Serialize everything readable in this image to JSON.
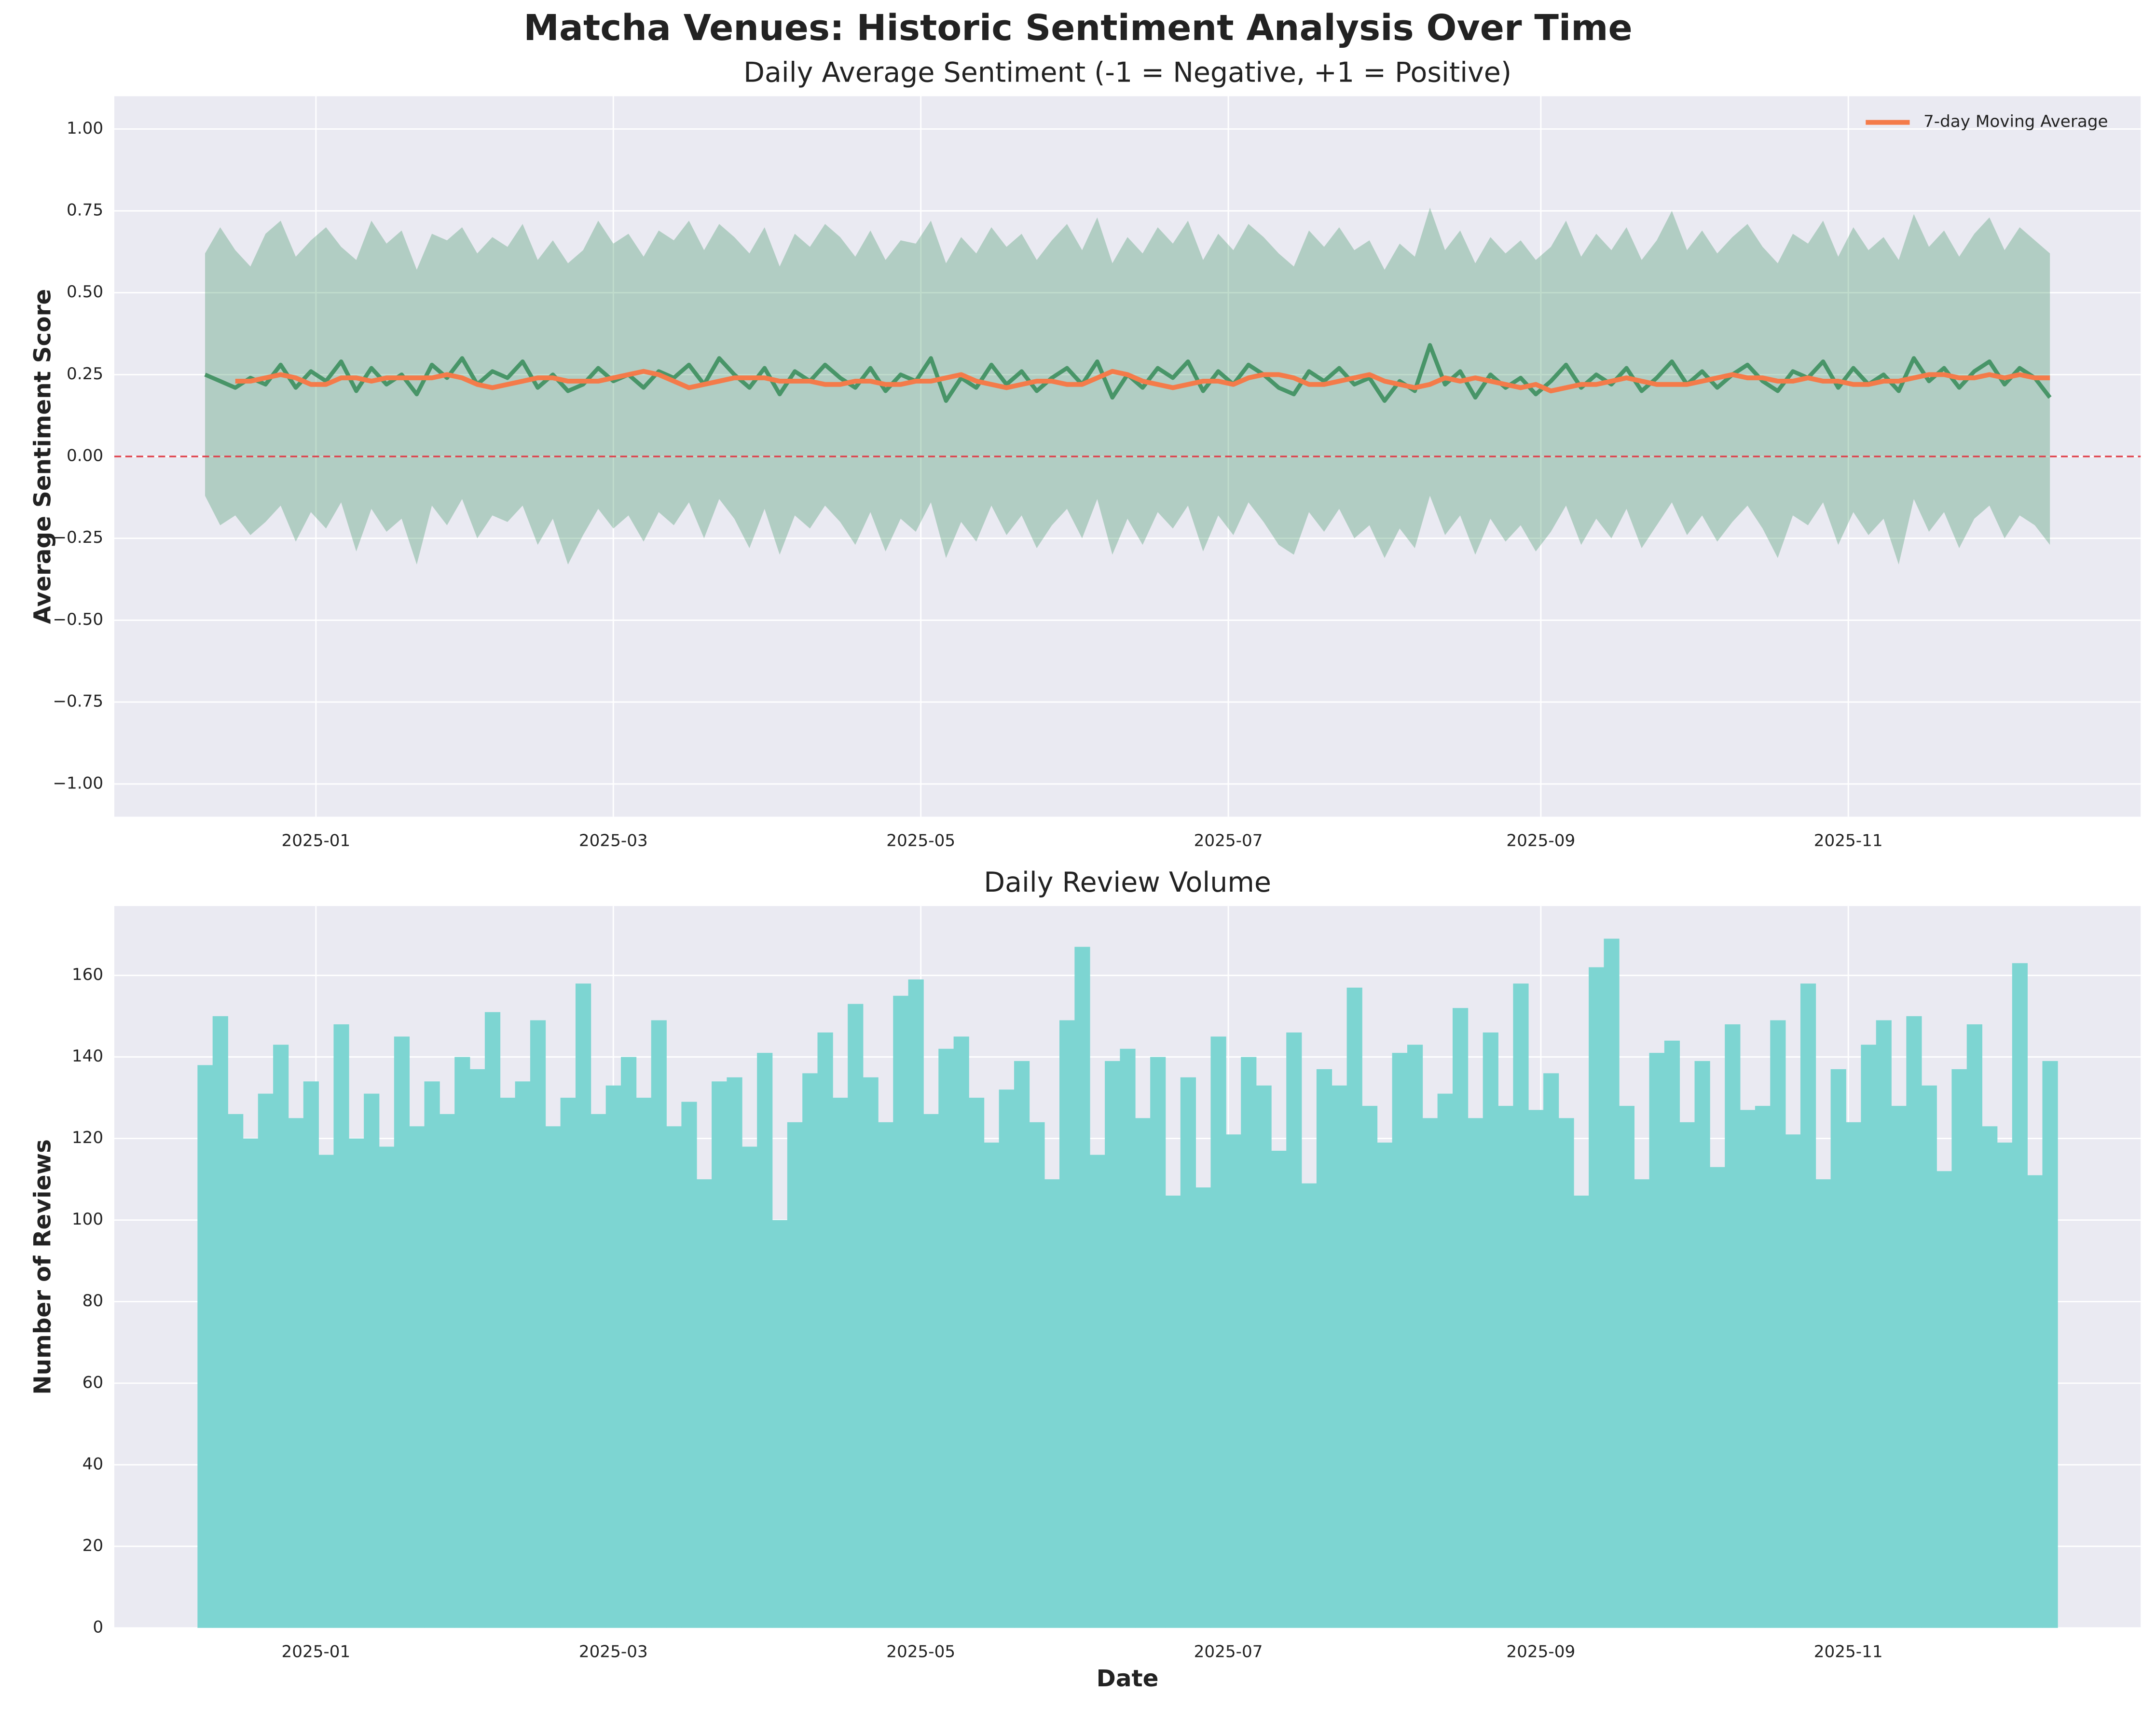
{
  "title": "Matcha Venues: Historic Sentiment Analysis Over Time",
  "chart_data": [
    {
      "type": "line",
      "title": "Daily Average Sentiment (-1 = Negative, +1 = Positive)",
      "ylabel": "Average Sentiment Score",
      "x": [
        "2024-12-10",
        "2024-12-13",
        "2024-12-16",
        "2024-12-19",
        "2024-12-22",
        "2024-12-25",
        "2024-12-28",
        "2024-12-31",
        "2025-01-03",
        "2025-01-06",
        "2025-01-09",
        "2025-01-12",
        "2025-01-15",
        "2025-01-18",
        "2025-01-21",
        "2025-01-24",
        "2025-01-27",
        "2025-01-30",
        "2025-02-02",
        "2025-02-05",
        "2025-02-08",
        "2025-02-11",
        "2025-02-14",
        "2025-02-17",
        "2025-02-20",
        "2025-02-23",
        "2025-02-26",
        "2025-03-01",
        "2025-03-04",
        "2025-03-07",
        "2025-03-10",
        "2025-03-13",
        "2025-03-16",
        "2025-03-19",
        "2025-03-22",
        "2025-03-25",
        "2025-03-28",
        "2025-03-31",
        "2025-04-03",
        "2025-04-06",
        "2025-04-09",
        "2025-04-12",
        "2025-04-15",
        "2025-04-18",
        "2025-04-21",
        "2025-04-24",
        "2025-04-27",
        "2025-04-30",
        "2025-05-03",
        "2025-05-06",
        "2025-05-09",
        "2025-05-12",
        "2025-05-15",
        "2025-05-18",
        "2025-05-21",
        "2025-05-24",
        "2025-05-27",
        "2025-05-30",
        "2025-06-02",
        "2025-06-05",
        "2025-06-08",
        "2025-06-11",
        "2025-06-14",
        "2025-06-17",
        "2025-06-20",
        "2025-06-23",
        "2025-06-26",
        "2025-06-29",
        "2025-07-02",
        "2025-07-05",
        "2025-07-08",
        "2025-07-11",
        "2025-07-14",
        "2025-07-17",
        "2025-07-20",
        "2025-07-23",
        "2025-07-26",
        "2025-07-29",
        "2025-08-01",
        "2025-08-04",
        "2025-08-07",
        "2025-08-10",
        "2025-08-13",
        "2025-08-16",
        "2025-08-19",
        "2025-08-22",
        "2025-08-25",
        "2025-08-28",
        "2025-08-31",
        "2025-09-03",
        "2025-09-06",
        "2025-09-09",
        "2025-09-12",
        "2025-09-15",
        "2025-09-18",
        "2025-09-21",
        "2025-09-24",
        "2025-09-27",
        "2025-09-30",
        "2025-10-03",
        "2025-10-06",
        "2025-10-09",
        "2025-10-12",
        "2025-10-15",
        "2025-10-18",
        "2025-10-21",
        "2025-10-24",
        "2025-10-27",
        "2025-10-30",
        "2025-11-02",
        "2025-11-05",
        "2025-11-08",
        "2025-11-11",
        "2025-11-14",
        "2025-11-17",
        "2025-11-20",
        "2025-11-23",
        "2025-11-26",
        "2025-11-29",
        "2025-12-02",
        "2025-12-05",
        "2025-12-08",
        "2025-12-11"
      ],
      "band": {
        "color": "#2e8b57",
        "upper": [
          0.62,
          0.7,
          0.63,
          0.58,
          0.68,
          0.72,
          0.61,
          0.66,
          0.7,
          0.64,
          0.6,
          0.72,
          0.65,
          0.69,
          0.57,
          0.68,
          0.66,
          0.7,
          0.62,
          0.67,
          0.64,
          0.71,
          0.6,
          0.66,
          0.59,
          0.63,
          0.72,
          0.65,
          0.68,
          0.61,
          0.69,
          0.66,
          0.72,
          0.63,
          0.71,
          0.67,
          0.62,
          0.7,
          0.58,
          0.68,
          0.64,
          0.71,
          0.67,
          0.61,
          0.69,
          0.6,
          0.66,
          0.65,
          0.72,
          0.59,
          0.67,
          0.62,
          0.7,
          0.64,
          0.68,
          0.6,
          0.66,
          0.71,
          0.63,
          0.73,
          0.59,
          0.67,
          0.62,
          0.7,
          0.65,
          0.72,
          0.6,
          0.68,
          0.63,
          0.71,
          0.67,
          0.62,
          0.58,
          0.69,
          0.64,
          0.7,
          0.63,
          0.66,
          0.57,
          0.65,
          0.61,
          0.76,
          0.63,
          0.69,
          0.59,
          0.67,
          0.62,
          0.66,
          0.6,
          0.64,
          0.72,
          0.61,
          0.68,
          0.63,
          0.7,
          0.6,
          0.66,
          0.75,
          0.63,
          0.69,
          0.62,
          0.67,
          0.71,
          0.64,
          0.59,
          0.68,
          0.65,
          0.72,
          0.61,
          0.7,
          0.63,
          0.67,
          0.6,
          0.74,
          0.64,
          0.69,
          0.61,
          0.68,
          0.73,
          0.63,
          0.7,
          0.66,
          0.62
        ],
        "lower": [
          -0.12,
          -0.21,
          -0.18,
          -0.24,
          -0.2,
          -0.15,
          -0.26,
          -0.17,
          -0.22,
          -0.14,
          -0.29,
          -0.16,
          -0.23,
          -0.19,
          -0.33,
          -0.15,
          -0.21,
          -0.13,
          -0.25,
          -0.18,
          -0.2,
          -0.15,
          -0.27,
          -0.19,
          -0.33,
          -0.24,
          -0.16,
          -0.22,
          -0.18,
          -0.26,
          -0.17,
          -0.21,
          -0.14,
          -0.25,
          -0.13,
          -0.19,
          -0.28,
          -0.16,
          -0.3,
          -0.18,
          -0.22,
          -0.15,
          -0.2,
          -0.27,
          -0.17,
          -0.29,
          -0.19,
          -0.23,
          -0.14,
          -0.31,
          -0.2,
          -0.26,
          -0.15,
          -0.24,
          -0.18,
          -0.28,
          -0.21,
          -0.16,
          -0.25,
          -0.13,
          -0.3,
          -0.19,
          -0.27,
          -0.17,
          -0.22,
          -0.15,
          -0.29,
          -0.18,
          -0.24,
          -0.14,
          -0.2,
          -0.27,
          -0.3,
          -0.17,
          -0.23,
          -0.16,
          -0.25,
          -0.21,
          -0.31,
          -0.22,
          -0.28,
          -0.12,
          -0.24,
          -0.18,
          -0.3,
          -0.19,
          -0.26,
          -0.21,
          -0.29,
          -0.23,
          -0.15,
          -0.27,
          -0.19,
          -0.25,
          -0.16,
          -0.28,
          -0.21,
          -0.14,
          -0.24,
          -0.18,
          -0.26,
          -0.2,
          -0.15,
          -0.22,
          -0.31,
          -0.18,
          -0.21,
          -0.14,
          -0.27,
          -0.17,
          -0.24,
          -0.19,
          -0.33,
          -0.13,
          -0.23,
          -0.17,
          -0.28,
          -0.19,
          -0.15,
          -0.25,
          -0.18,
          -0.21,
          -0.27
        ]
      },
      "series": [
        {
          "color": "#3d8f5e",
          "values": [
            0.25,
            0.23,
            0.21,
            0.24,
            0.22,
            0.28,
            0.21,
            0.26,
            0.23,
            0.29,
            0.2,
            0.27,
            0.22,
            0.25,
            0.19,
            0.28,
            0.24,
            0.3,
            0.22,
            0.26,
            0.24,
            0.29,
            0.21,
            0.25,
            0.2,
            0.22,
            0.27,
            0.23,
            0.25,
            0.21,
            0.26,
            0.24,
            0.28,
            0.22,
            0.3,
            0.25,
            0.21,
            0.27,
            0.19,
            0.26,
            0.23,
            0.28,
            0.24,
            0.21,
            0.27,
            0.2,
            0.25,
            0.23,
            0.3,
            0.17,
            0.24,
            0.21,
            0.28,
            0.22,
            0.26,
            0.2,
            0.24,
            0.27,
            0.22,
            0.29,
            0.18,
            0.25,
            0.21,
            0.27,
            0.24,
            0.29,
            0.2,
            0.26,
            0.22,
            0.28,
            0.25,
            0.21,
            0.19,
            0.26,
            0.23,
            0.27,
            0.22,
            0.24,
            0.17,
            0.23,
            0.2,
            0.34,
            0.22,
            0.26,
            0.18,
            0.25,
            0.21,
            0.24,
            0.19,
            0.23,
            0.28,
            0.21,
            0.25,
            0.22,
            0.27,
            0.2,
            0.24,
            0.29,
            0.22,
            0.26,
            0.21,
            0.25,
            0.28,
            0.23,
            0.2,
            0.26,
            0.24,
            0.29,
            0.21,
            0.27,
            0.22,
            0.25,
            0.2,
            0.3,
            0.23,
            0.27,
            0.21,
            0.26,
            0.29,
            0.22,
            0.27,
            0.24,
            0.18
          ]
        },
        {
          "name": "7-day Moving Average",
          "color": "#f47b4a",
          "values": [
            null,
            null,
            0.23,
            0.23,
            0.24,
            0.25,
            0.24,
            0.22,
            0.22,
            0.24,
            0.24,
            0.23,
            0.24,
            0.24,
            0.24,
            0.24,
            0.25,
            0.24,
            0.22,
            0.21,
            0.22,
            0.23,
            0.24,
            0.24,
            0.23,
            0.23,
            0.23,
            0.24,
            0.25,
            0.26,
            0.25,
            0.23,
            0.21,
            0.22,
            0.23,
            0.24,
            0.24,
            0.24,
            0.23,
            0.23,
            0.23,
            0.22,
            0.22,
            0.23,
            0.23,
            0.22,
            0.22,
            0.23,
            0.23,
            0.24,
            0.25,
            0.23,
            0.22,
            0.21,
            0.22,
            0.23,
            0.23,
            0.22,
            0.22,
            0.24,
            0.26,
            0.25,
            0.23,
            0.22,
            0.21,
            0.22,
            0.23,
            0.23,
            0.22,
            0.24,
            0.25,
            0.25,
            0.24,
            0.22,
            0.22,
            0.23,
            0.24,
            0.25,
            0.23,
            0.22,
            0.21,
            0.22,
            0.24,
            0.23,
            0.24,
            0.23,
            0.22,
            0.21,
            0.22,
            0.2,
            0.21,
            0.22,
            0.22,
            0.23,
            0.24,
            0.23,
            0.22,
            0.22,
            0.22,
            0.23,
            0.24,
            0.25,
            0.24,
            0.24,
            0.23,
            0.23,
            0.24,
            0.23,
            0.23,
            0.22,
            0.22,
            0.23,
            0.23,
            0.24,
            0.25,
            0.25,
            0.24,
            0.24,
            0.25,
            0.24,
            0.25,
            0.24,
            0.24
          ]
        }
      ],
      "hline": {
        "value": 0,
        "color": "#e0404a"
      },
      "xlim": [
        "2024-11-22",
        "2025-12-29"
      ],
      "xticks": [
        {
          "value": "2025-01-01",
          "label": "2025-01"
        },
        {
          "value": "2025-03-01",
          "label": "2025-03"
        },
        {
          "value": "2025-05-01",
          "label": "2025-05"
        },
        {
          "value": "2025-07-01",
          "label": "2025-07"
        },
        {
          "value": "2025-09-01",
          "label": "2025-09"
        },
        {
          "value": "2025-11-01",
          "label": "2025-11"
        }
      ],
      "ylim": [
        -1.1,
        1.1
      ],
      "yticks": [
        {
          "value": -1,
          "label": "−1.00"
        },
        {
          "value": -0.75,
          "label": "−0.75"
        },
        {
          "value": -0.5,
          "label": "−0.50"
        },
        {
          "value": -0.25,
          "label": "−0.25"
        },
        {
          "value": 0,
          "label": "0.00"
        },
        {
          "value": 0.25,
          "label": "0.25"
        },
        {
          "value": 0.5,
          "label": "0.50"
        },
        {
          "value": 0.75,
          "label": "0.75"
        },
        {
          "value": 1,
          "label": "1.00"
        }
      ],
      "grid": true,
      "legend": "upper right"
    },
    {
      "type": "bar",
      "title": "Daily Review Volume",
      "ylabel": "Number of Reviews",
      "xlabel": "Date",
      "color": "#7dd5d2",
      "x": [
        "2024-12-10",
        "2024-12-13",
        "2024-12-16",
        "2024-12-19",
        "2024-12-22",
        "2024-12-25",
        "2024-12-28",
        "2024-12-31",
        "2025-01-03",
        "2025-01-06",
        "2025-01-09",
        "2025-01-12",
        "2025-01-15",
        "2025-01-18",
        "2025-01-21",
        "2025-01-24",
        "2025-01-27",
        "2025-01-30",
        "2025-02-02",
        "2025-02-05",
        "2025-02-08",
        "2025-02-11",
        "2025-02-14",
        "2025-02-17",
        "2025-02-20",
        "2025-02-23",
        "2025-02-26",
        "2025-03-01",
        "2025-03-04",
        "2025-03-07",
        "2025-03-10",
        "2025-03-13",
        "2025-03-16",
        "2025-03-19",
        "2025-03-22",
        "2025-03-25",
        "2025-03-28",
        "2025-03-31",
        "2025-04-03",
        "2025-04-06",
        "2025-04-09",
        "2025-04-12",
        "2025-04-15",
        "2025-04-18",
        "2025-04-21",
        "2025-04-24",
        "2025-04-27",
        "2025-04-30",
        "2025-05-03",
        "2025-05-06",
        "2025-05-09",
        "2025-05-12",
        "2025-05-15",
        "2025-05-18",
        "2025-05-21",
        "2025-05-24",
        "2025-05-27",
        "2025-05-30",
        "2025-06-02",
        "2025-06-05",
        "2025-06-08",
        "2025-06-11",
        "2025-06-14",
        "2025-06-17",
        "2025-06-20",
        "2025-06-23",
        "2025-06-26",
        "2025-06-29",
        "2025-07-02",
        "2025-07-05",
        "2025-07-08",
        "2025-07-11",
        "2025-07-14",
        "2025-07-17",
        "2025-07-20",
        "2025-07-23",
        "2025-07-26",
        "2025-07-29",
        "2025-08-01",
        "2025-08-04",
        "2025-08-07",
        "2025-08-10",
        "2025-08-13",
        "2025-08-16",
        "2025-08-19",
        "2025-08-22",
        "2025-08-25",
        "2025-08-28",
        "2025-08-31",
        "2025-09-03",
        "2025-09-06",
        "2025-09-09",
        "2025-09-12",
        "2025-09-15",
        "2025-09-18",
        "2025-09-21",
        "2025-09-24",
        "2025-09-27",
        "2025-09-30",
        "2025-10-03",
        "2025-10-06",
        "2025-10-09",
        "2025-10-12",
        "2025-10-15",
        "2025-10-18",
        "2025-10-21",
        "2025-10-24",
        "2025-10-27",
        "2025-10-30",
        "2025-11-02",
        "2025-11-05",
        "2025-11-08",
        "2025-11-11",
        "2025-11-14",
        "2025-11-17",
        "2025-11-20",
        "2025-11-23",
        "2025-11-26",
        "2025-11-29",
        "2025-12-02",
        "2025-12-05",
        "2025-12-08",
        "2025-12-11"
      ],
      "values": [
        138,
        150,
        126,
        120,
        131,
        143,
        125,
        134,
        116,
        148,
        120,
        131,
        118,
        145,
        123,
        134,
        126,
        140,
        137,
        151,
        130,
        134,
        149,
        123,
        130,
        158,
        126,
        133,
        140,
        130,
        149,
        123,
        129,
        110,
        134,
        135,
        118,
        141,
        100,
        124,
        136,
        146,
        130,
        153,
        135,
        124,
        155,
        159,
        126,
        142,
        145,
        130,
        119,
        132,
        139,
        124,
        110,
        149,
        167,
        116,
        139,
        142,
        125,
        140,
        106,
        135,
        108,
        145,
        121,
        140,
        133,
        117,
        146,
        109,
        137,
        133,
        157,
        128,
        119,
        141,
        143,
        125,
        131,
        152,
        125,
        146,
        128,
        158,
        127,
        136,
        125,
        106,
        162,
        169,
        128,
        110,
        141,
        144,
        124,
        139,
        113,
        148,
        127,
        128,
        149,
        121,
        158,
        110,
        137,
        124,
        143,
        149,
        128,
        150,
        133,
        112,
        137,
        148,
        123,
        119,
        163,
        111,
        139
      ],
      "xlim": [
        "2024-11-22",
        "2025-12-29"
      ],
      "xticks": [
        {
          "value": "2025-01-01",
          "label": "2025-01"
        },
        {
          "value": "2025-03-01",
          "label": "2025-03"
        },
        {
          "value": "2025-05-01",
          "label": "2025-05"
        },
        {
          "value": "2025-07-01",
          "label": "2025-07"
        },
        {
          "value": "2025-09-01",
          "label": "2025-09"
        },
        {
          "value": "2025-11-01",
          "label": "2025-11"
        }
      ],
      "ylim": [
        0,
        177
      ],
      "yticks": [
        0,
        20,
        40,
        60,
        80,
        100,
        120,
        140,
        160
      ],
      "grid": true
    }
  ]
}
